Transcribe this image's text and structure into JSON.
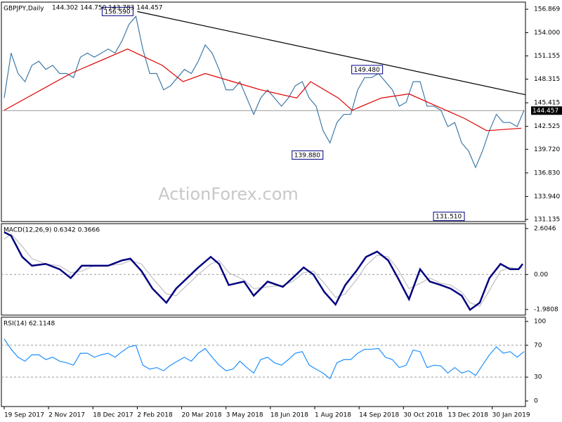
{
  "chart_data": [
    {
      "type": "line",
      "title": "GBPJPY,Daily",
      "subtitle": "144.302 144.750 143.783 144.457",
      "watermark": "ActionForex.com",
      "xlim": [
        -2,
        376
      ],
      "ylim": [
        130.875,
        157.74
      ],
      "yticks": [
        156.869,
        {
          "value": 154,
          "label": "154.000"
        },
        151.155,
        148.315,
        145.415,
        142.525,
        {
          "value": 139.72,
          "label": "139.720"
        },
        {
          "value": 136.83,
          "label": "136.830"
        },
        {
          "value": 133.94,
          "label": "133.940"
        },
        131.135
      ],
      "series": [
        {
          "color": "#3f7aa8",
          "x": [
            0,
            5,
            10,
            15,
            20,
            25,
            30,
            35,
            40,
            45,
            50,
            55,
            60,
            65,
            70,
            75,
            80,
            85,
            90,
            95,
            100,
            105,
            110,
            115,
            120,
            125,
            130,
            135,
            140,
            145,
            150,
            155,
            160,
            165,
            170,
            175,
            180,
            185,
            190,
            195,
            200,
            205,
            210,
            215,
            220,
            225,
            230,
            235,
            240,
            245,
            250,
            255,
            260,
            265,
            270,
            275,
            280,
            285,
            290,
            295,
            300,
            305,
            310,
            315,
            320,
            325,
            330,
            335,
            340,
            345,
            350,
            355,
            360,
            365,
            370,
            375
          ],
          "values": [
            146,
            151.5,
            149,
            148,
            150,
            150.5,
            149.5,
            150,
            149,
            149,
            148.5,
            151,
            151.5,
            151,
            151.5,
            152,
            151.5,
            153,
            155,
            156,
            152,
            149,
            149,
            147,
            147.5,
            148.5,
            149.5,
            149,
            150.5,
            152.5,
            151.5,
            149.5,
            147,
            147,
            148,
            146,
            144,
            146,
            147,
            146,
            145,
            146,
            147.5,
            148,
            146,
            145,
            142,
            140.5,
            143,
            144,
            144,
            147,
            148.5,
            148.5,
            149,
            148,
            147,
            145,
            145.5,
            148,
            148,
            145,
            145,
            144.5,
            142.5,
            143,
            140.5,
            139.5,
            137.5,
            139.5,
            142,
            144,
            143,
            143,
            142.5,
            144.5
          ]
        },
        {
          "color": "#e00000",
          "x": [
            0,
            48,
            89,
            114,
            129,
            145,
            165,
            185,
            211,
            221,
            241,
            251,
            272,
            292,
            312,
            332,
            348,
            373
          ],
          "values": [
            144.5,
            149,
            152,
            150,
            148,
            149,
            148,
            147,
            146,
            148,
            146,
            144.5,
            146,
            146.5,
            145,
            143.5,
            142,
            142.3
          ]
        },
        {
          "color": "#000000",
          "x": [
            96,
            376
          ],
          "values": [
            156.59,
            146.4
          ]
        }
      ],
      "annotations": [
        {
          "x": 96,
          "value": 156.59,
          "label": "156.590"
        },
        {
          "x": 276,
          "value": 149.48,
          "label": "149.480"
        },
        {
          "x": 233,
          "value": 139.88,
          "label": "139.880"
        },
        {
          "x": 336,
          "value": 131.51,
          "label": "131.510"
        }
      ],
      "last": {
        "value": 144.457,
        "label": "144.457"
      }
    },
    {
      "type": "line",
      "title": "MACD(12,26,9) 0.6342 0.3666",
      "xlim": [
        -2,
        376
      ],
      "ylim": [
        -2.3,
        2.883
      ],
      "yticks": [
        2.6046,
        {
          "value": 0,
          "label": "0.00"
        },
        -1.9808
      ],
      "levels": [
        0
      ],
      "series": [
        {
          "color": "#c0c0c0",
          "x": [
            0,
            5,
            13,
            20,
            30,
            40,
            48,
            56,
            65,
            75,
            85,
            91,
            99,
            107,
            117,
            124,
            132,
            140,
            149,
            155,
            162,
            173,
            180,
            190,
            201,
            208,
            216,
            223,
            231,
            239,
            246,
            254,
            261,
            269,
            277,
            284,
            292,
            300,
            307,
            315,
            322,
            330,
            336,
            343,
            350,
            358,
            365,
            371,
            374
          ],
          "values": [
            2.0,
            2.3,
            1.6,
            0.9,
            0.6,
            0.5,
            0.1,
            0.2,
            0.5,
            0.5,
            0.6,
            0.8,
            0.6,
            -0.2,
            -1.1,
            -1.2,
            -0.6,
            0.0,
            0.6,
            0.8,
            0.1,
            -0.3,
            -0.8,
            -0.7,
            -0.6,
            -0.4,
            0.1,
            0.2,
            -0.5,
            -1.3,
            -1.1,
            -0.3,
            0.5,
            1.1,
            1.0,
            0.3,
            -0.8,
            -0.5,
            -0.2,
            -0.5,
            -0.6,
            -1.0,
            -1.6,
            -1.8,
            -0.9,
            0.2,
            0.4,
            0.3,
            0.4
          ]
        },
        {
          "color": "#000080",
          "x": [
            0,
            5,
            13,
            20,
            30,
            40,
            48,
            56,
            65,
            75,
            85,
            91,
            99,
            107,
            117,
            124,
            132,
            140,
            149,
            155,
            162,
            173,
            180,
            190,
            201,
            208,
            216,
            223,
            231,
            239,
            246,
            254,
            261,
            269,
            277,
            284,
            292,
            300,
            307,
            315,
            322,
            330,
            336,
            343,
            350,
            358,
            365,
            371,
            374
          ],
          "values": [
            2.4,
            2.2,
            1.0,
            0.5,
            0.6,
            0.3,
            -0.2,
            0.5,
            0.5,
            0.5,
            0.8,
            0.9,
            0.2,
            -0.8,
            -1.6,
            -0.8,
            -0.2,
            0.4,
            1.0,
            0.6,
            -0.6,
            -0.4,
            -1.2,
            -0.4,
            -0.7,
            -0.2,
            0.4,
            0.0,
            -1.0,
            -1.7,
            -0.6,
            0.2,
            1.0,
            1.3,
            0.8,
            -0.2,
            -1.4,
            0.3,
            -0.4,
            -0.6,
            -0.8,
            -1.2,
            -2.0,
            -1.6,
            -0.2,
            0.6,
            0.3,
            0.3,
            0.6
          ]
        }
      ]
    },
    {
      "type": "line",
      "title": "RSI(14) 62.1148",
      "xlim": [
        -2,
        376
      ],
      "ylim": [
        -7,
        105.3
      ],
      "yticks": [
        100,
        70,
        30,
        0
      ],
      "levels": [
        70,
        30
      ],
      "xticks": [
        {
          "value": 0,
          "label": "19 Sep 2017"
        },
        {
          "value": 32,
          "label": "2 Nov 2017"
        },
        {
          "value": 64,
          "label": "18 Dec 2017"
        },
        {
          "value": 96,
          "label": "2 Feb 2018"
        },
        {
          "value": 128,
          "label": "20 Mar 2018"
        },
        {
          "value": 160,
          "label": "3 May 2018"
        },
        {
          "value": 192,
          "label": "18 Jun 2018"
        },
        {
          "value": 224,
          "label": "1 Aug 2018"
        },
        {
          "value": 256,
          "label": "14 Sep 2018"
        },
        {
          "value": 288,
          "label": "30 Oct 2018"
        },
        {
          "value": 320,
          "label": "13 Dec 2018"
        },
        {
          "value": 352,
          "label": "30 Jan 2019"
        }
      ],
      "series": [
        {
          "color": "#1e90ff",
          "x": [
            0,
            5,
            10,
            15,
            20,
            25,
            30,
            35,
            40,
            45,
            50,
            55,
            60,
            65,
            70,
            75,
            80,
            85,
            90,
            95,
            100,
            105,
            110,
            115,
            120,
            125,
            130,
            135,
            140,
            145,
            150,
            155,
            160,
            165,
            170,
            175,
            180,
            185,
            190,
            195,
            200,
            205,
            210,
            215,
            220,
            225,
            230,
            235,
            240,
            245,
            250,
            255,
            260,
            265,
            270,
            275,
            280,
            285,
            290,
            295,
            300,
            305,
            310,
            315,
            320,
            325,
            330,
            335,
            340,
            345,
            350,
            355,
            360,
            365,
            370,
            375
          ],
          "values": [
            78,
            65,
            55,
            50,
            58,
            58,
            52,
            55,
            50,
            48,
            45,
            60,
            60,
            55,
            58,
            60,
            55,
            62,
            68,
            70,
            45,
            40,
            42,
            38,
            45,
            50,
            55,
            50,
            60,
            66,
            55,
            45,
            38,
            40,
            50,
            42,
            35,
            52,
            55,
            48,
            45,
            52,
            60,
            62,
            45,
            40,
            35,
            28,
            48,
            52,
            52,
            60,
            65,
            65,
            66,
            55,
            52,
            42,
            45,
            64,
            62,
            42,
            45,
            44,
            35,
            42,
            35,
            38,
            32,
            45,
            58,
            68,
            60,
            62,
            55,
            62.11
          ]
        }
      ]
    }
  ]
}
